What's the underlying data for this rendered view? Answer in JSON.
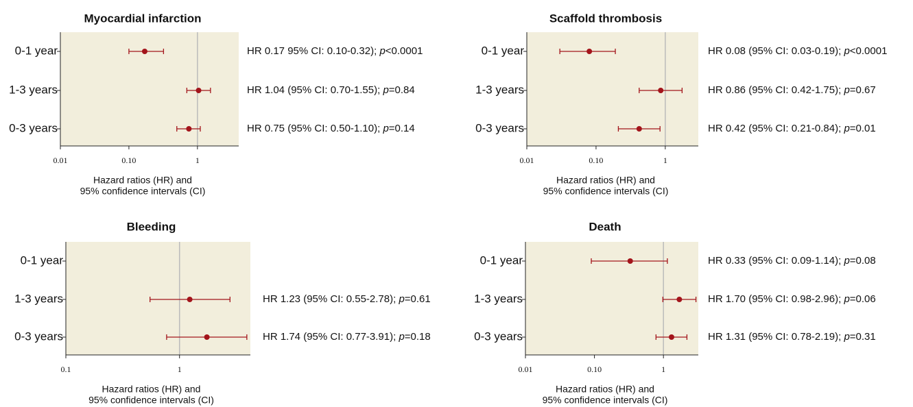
{
  "chart_data": [
    {
      "type": "forest",
      "title": "Myocardial infarction",
      "color": "#a3141b",
      "log_x": true,
      "categories": [
        "0-1 year",
        "1-3 years",
        "0-3 years"
      ],
      "values": [
        0.17,
        1.04,
        0.75
      ],
      "lower": [
        0.1,
        0.7,
        0.5
      ],
      "upper": [
        0.32,
        1.55,
        1.1
      ],
      "value_labels": [
        "HR 0.17 95% CI: 0.10-0.32); p<0.0001",
        "HR 1.04 (95% CI: 0.70-1.55); p=0.84",
        "HR 0.75 (95% CI: 0.50-1.10); p=0.14"
      ],
      "xlim": [
        0.01,
        4
      ],
      "xticks": [
        0.01,
        {
          "value": 0.1,
          "label": "0.10"
        },
        1
      ],
      "refline": 1,
      "xlabel": [
        "Hazard ratios (HR) and",
        "95% confidence intervals (CI)"
      ]
    },
    {
      "type": "forest",
      "title": "Scaffold thrombosis",
      "color": "#a3141b",
      "log_x": true,
      "categories": [
        "0-1 year",
        "1-3 years",
        "0-3 years"
      ],
      "values": [
        0.08,
        0.86,
        0.42
      ],
      "lower": [
        0.03,
        0.42,
        0.21
      ],
      "upper": [
        0.19,
        1.75,
        0.84
      ],
      "value_labels": [
        "HR 0.08 (95% CI: 0.03-0.19); p<0.0001",
        "HR 0.86 (95% CI: 0.42-1.75); p=0.67",
        "HR 0.42 (95% CI: 0.21-0.84); p=0.01"
      ],
      "xlim": [
        0.01,
        3
      ],
      "xticks": [
        0.01,
        {
          "value": 0.1,
          "label": "0.10"
        },
        1
      ],
      "refline": 1,
      "xlabel": [
        "Hazard ratios (HR) and",
        "95% confidence intervals (CI)"
      ]
    },
    {
      "type": "forest",
      "title": "Bleeding",
      "color": "#a3141b",
      "log_x": true,
      "categories": [
        "0-1 year",
        "1-3 years",
        "0-3 years"
      ],
      "values": [
        null,
        1.23,
        1.74
      ],
      "lower": [
        null,
        0.55,
        0.77
      ],
      "upper": [
        null,
        2.78,
        3.91
      ],
      "value_labels": [
        null,
        "HR 1.23 (95% CI: 0.55-2.78); p=0.61",
        "HR 1.74 (95% CI: 0.77-3.91); p=0.18"
      ],
      "xlim": [
        0.1,
        4.2
      ],
      "xticks": [
        0.1,
        1
      ],
      "refline": 1,
      "xlabel": [
        "Hazard ratios (HR) and",
        "95% confidence intervals (CI)"
      ]
    },
    {
      "type": "forest",
      "title": "Death",
      "color": "#a3141b",
      "log_x": true,
      "categories": [
        "0-1 year",
        "1-3 years",
        "0-3 years"
      ],
      "values": [
        0.33,
        1.7,
        1.31
      ],
      "lower": [
        0.09,
        0.98,
        0.78
      ],
      "upper": [
        1.14,
        2.96,
        2.19
      ],
      "value_labels": [
        "HR 0.33 (95% CI: 0.09-1.14); p=0.08",
        "HR 1.70 (95% CI: 0.98-2.96); p=0.06",
        "HR 1.31 (95% CI: 0.78-2.19); p=0.31"
      ],
      "xlim": [
        0.01,
        3.2
      ],
      "xticks": [
        0.01,
        {
          "value": 0.1,
          "label": "0.10"
        },
        1
      ],
      "refline": 1,
      "xlabel": [
        "Hazard ratios (HR) and",
        "95% confidence intervals (CI)"
      ]
    }
  ]
}
